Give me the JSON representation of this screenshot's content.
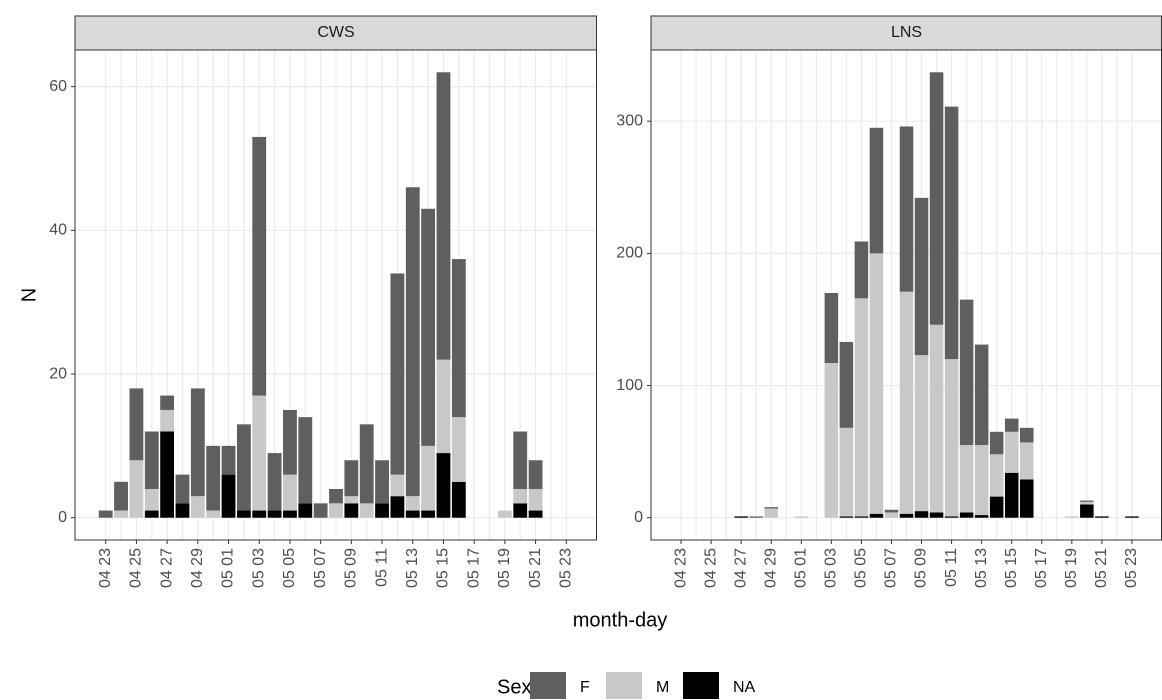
{
  "xlabel": "month-day",
  "ylabel": "N",
  "legend_title": "Sex",
  "chart_data": [
    {
      "type": "bar",
      "stacked": true,
      "title": "CWS",
      "categories": [
        "04 23",
        null,
        "04 25",
        null,
        "04 27",
        null,
        "04 29",
        null,
        "05 01",
        null,
        "05 03",
        null,
        "05 05",
        null,
        "05 07",
        null,
        "05 09",
        null,
        "05 11",
        null,
        "05 13",
        null,
        "05 15",
        null,
        "05 17",
        null,
        "05 19",
        null,
        "05 21",
        null,
        "05 23"
      ],
      "series": [
        {
          "name": "F",
          "color": "#5f5f5f",
          "values": [
            1,
            4,
            10,
            8,
            2,
            4,
            15,
            9,
            4,
            12,
            36,
            8,
            9,
            12,
            2,
            2,
            5,
            11,
            6,
            28,
            43,
            33,
            40,
            22,
            0,
            0,
            0,
            8,
            4,
            0,
            0
          ]
        },
        {
          "name": "M",
          "color": "#c8c8c8",
          "values": [
            0,
            1,
            8,
            3,
            3,
            0,
            3,
            1,
            0,
            0,
            16,
            0,
            5,
            0,
            0,
            2,
            1,
            2,
            0,
            3,
            2,
            9,
            13,
            9,
            0,
            0,
            1,
            2,
            3,
            0,
            0
          ]
        },
        {
          "name": "NA",
          "color": "#000000",
          "values": [
            0,
            0,
            0,
            1,
            12,
            2,
            0,
            0,
            6,
            1,
            1,
            1,
            1,
            2,
            0,
            0,
            2,
            0,
            2,
            3,
            1,
            1,
            9,
            5,
            0,
            0,
            0,
            2,
            1,
            0,
            0
          ]
        }
      ],
      "ylim": [
        -3.1,
        65.1
      ],
      "yticks": [
        0,
        20,
        40,
        60
      ],
      "grid": true
    },
    {
      "type": "bar",
      "stacked": true,
      "title": "LNS",
      "categories": [
        "04 23",
        null,
        "04 25",
        null,
        "04 27",
        null,
        "04 29",
        null,
        "05 01",
        null,
        "05 03",
        null,
        "05 05",
        null,
        "05 07",
        null,
        "05 09",
        null,
        "05 11",
        null,
        "05 13",
        null,
        "05 15",
        null,
        "05 17",
        null,
        "05 19",
        null,
        "05 21",
        null,
        "05 23"
      ],
      "series": [
        {
          "values": [
            0,
            0,
            0,
            0,
            0,
            1,
            1,
            0,
            0,
            0,
            53,
            65,
            43,
            95,
            2,
            125,
            119,
            191,
            191,
            110,
            76,
            17,
            10,
            11,
            0,
            0,
            0,
            1,
            0,
            0,
            0
          ]
        },
        {
          "values": [
            0,
            0,
            0,
            0,
            0,
            0,
            7,
            0,
            1,
            0,
            117,
            67,
            165,
            197,
            4,
            168,
            118,
            142,
            119,
            51,
            53,
            32,
            31,
            28,
            0,
            0,
            1,
            2,
            0,
            0,
            0
          ]
        },
        {
          "values": [
            0,
            0,
            0,
            0,
            1,
            0,
            0,
            0,
            0,
            0,
            0,
            1,
            1,
            3,
            0,
            3,
            5,
            4,
            1,
            4,
            2,
            16,
            34,
            29,
            0,
            0,
            0,
            10,
            1,
            0,
            1
          ]
        }
      ],
      "ylim": [
        -16.85,
        353.85
      ],
      "yticks": [
        0,
        100,
        200,
        300
      ],
      "grid": true
    }
  ]
}
